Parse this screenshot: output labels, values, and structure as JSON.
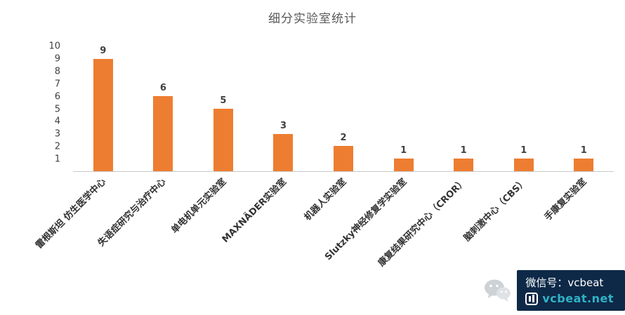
{
  "title": "细分实验室统计",
  "chart_data": {
    "type": "bar",
    "title": "细分实验室统计",
    "categories": [
      "雷根斯坦 仿生医学中心",
      "失语症研究与治疗中心",
      "单电机单元实验室",
      "MAXNÄDER实验室",
      "机器人实验室",
      "Slutzky神经修复学实验室",
      "康复结果研究中心（CROR）",
      "脑刺激中心（CBS）",
      "手康复实验室"
    ],
    "values": [
      9,
      6,
      5,
      3,
      2,
      1,
      1,
      1,
      1
    ],
    "xlabel": "",
    "ylabel": "",
    "ylim": [
      0,
      10
    ],
    "yticks": [
      1,
      2,
      3,
      4,
      5,
      6,
      7,
      8,
      9,
      10
    ],
    "grid": false,
    "legend": "none",
    "data_labels": true,
    "bar_color": "#ED7D31"
  },
  "colors": {
    "bar": "#ED7D31",
    "title_text": "#595959",
    "axis_text": "#404040",
    "category_text": "#333333",
    "axis_line": "#c9c9c9",
    "watermark_bg": "#0e2947",
    "watermark_accent": "#2fb3c8"
  },
  "watermark": {
    "line1": "微信号：vcbeat",
    "line2": "vcbeat.net",
    "icons": {
      "wechat": "wechat-icon",
      "logo": "vcbeat-logo"
    }
  }
}
